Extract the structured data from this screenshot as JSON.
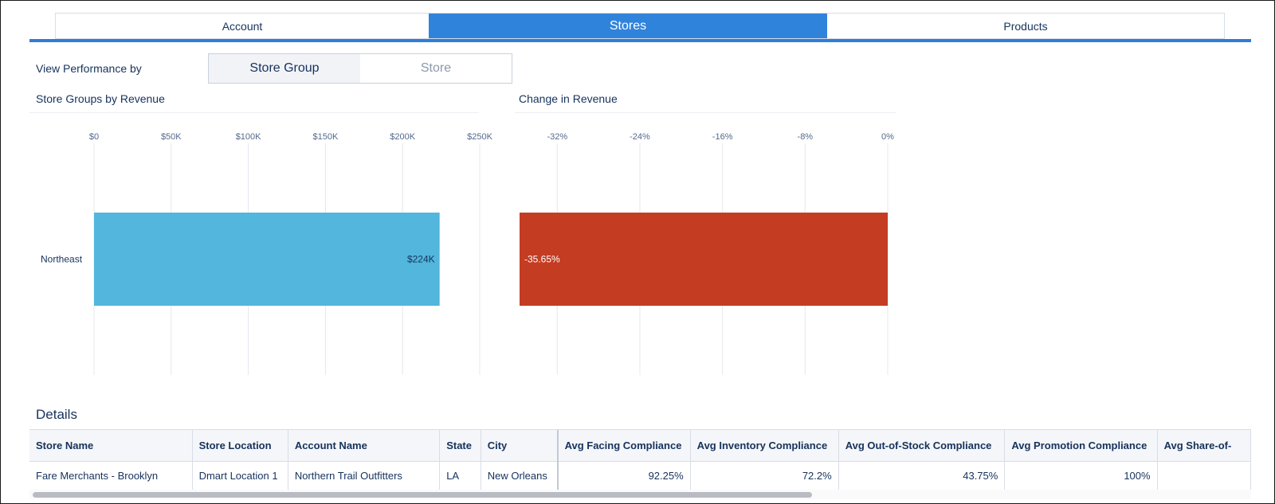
{
  "tabs": [
    {
      "label": "Account",
      "active": false
    },
    {
      "label": "Stores",
      "active": true
    },
    {
      "label": "Products",
      "active": false
    }
  ],
  "view_by": {
    "label": "View Performance by",
    "options": [
      {
        "label": "Store Group",
        "selected": true
      },
      {
        "label": "Store",
        "selected": false
      }
    ]
  },
  "colors": {
    "accent": "#3083db",
    "revenue_bar": "#52b6dd",
    "change_bar": "#c43c22"
  },
  "chart_data": [
    {
      "type": "bar",
      "orientation": "horizontal",
      "title": "Store Groups by Revenue",
      "categories": [
        "Northeast"
      ],
      "values": [
        224000
      ],
      "data_labels": [
        "$224K"
      ],
      "xlim": [
        0,
        250000
      ],
      "x_ticks": [
        0,
        50000,
        100000,
        150000,
        200000,
        250000
      ],
      "x_tick_labels": [
        "$0",
        "$50K",
        "$100K",
        "$150K",
        "$200K",
        "$250K"
      ],
      "grid": true
    },
    {
      "type": "bar",
      "orientation": "horizontal",
      "title": "Change in Revenue",
      "categories": [
        "Northeast"
      ],
      "values": [
        -35.65
      ],
      "data_labels": [
        "-35.65%"
      ],
      "xlim": [
        -35.65,
        0
      ],
      "x_ticks": [
        -32,
        -24,
        -16,
        -8,
        0
      ],
      "x_tick_labels": [
        "-32%",
        "-24%",
        "-16%",
        "-8%",
        "0%"
      ],
      "grid": true
    }
  ],
  "details": {
    "title": "Details",
    "columns": [
      "Store Name",
      "Store Location",
      "Account Name",
      "State",
      "City",
      "Avg Facing Compliance",
      "Avg Inventory Compliance",
      "Avg Out-of-Stock Compliance",
      "Avg Promotion Compliance",
      "Avg Share-of-"
    ],
    "rows": [
      [
        "Fare Merchants - Brooklyn",
        "Dmart Location 1",
        "Northern Trail Outfitters",
        "LA",
        "New Orleans",
        "92.25%",
        "72.2%",
        "43.75%",
        "100%",
        ""
      ]
    ]
  }
}
